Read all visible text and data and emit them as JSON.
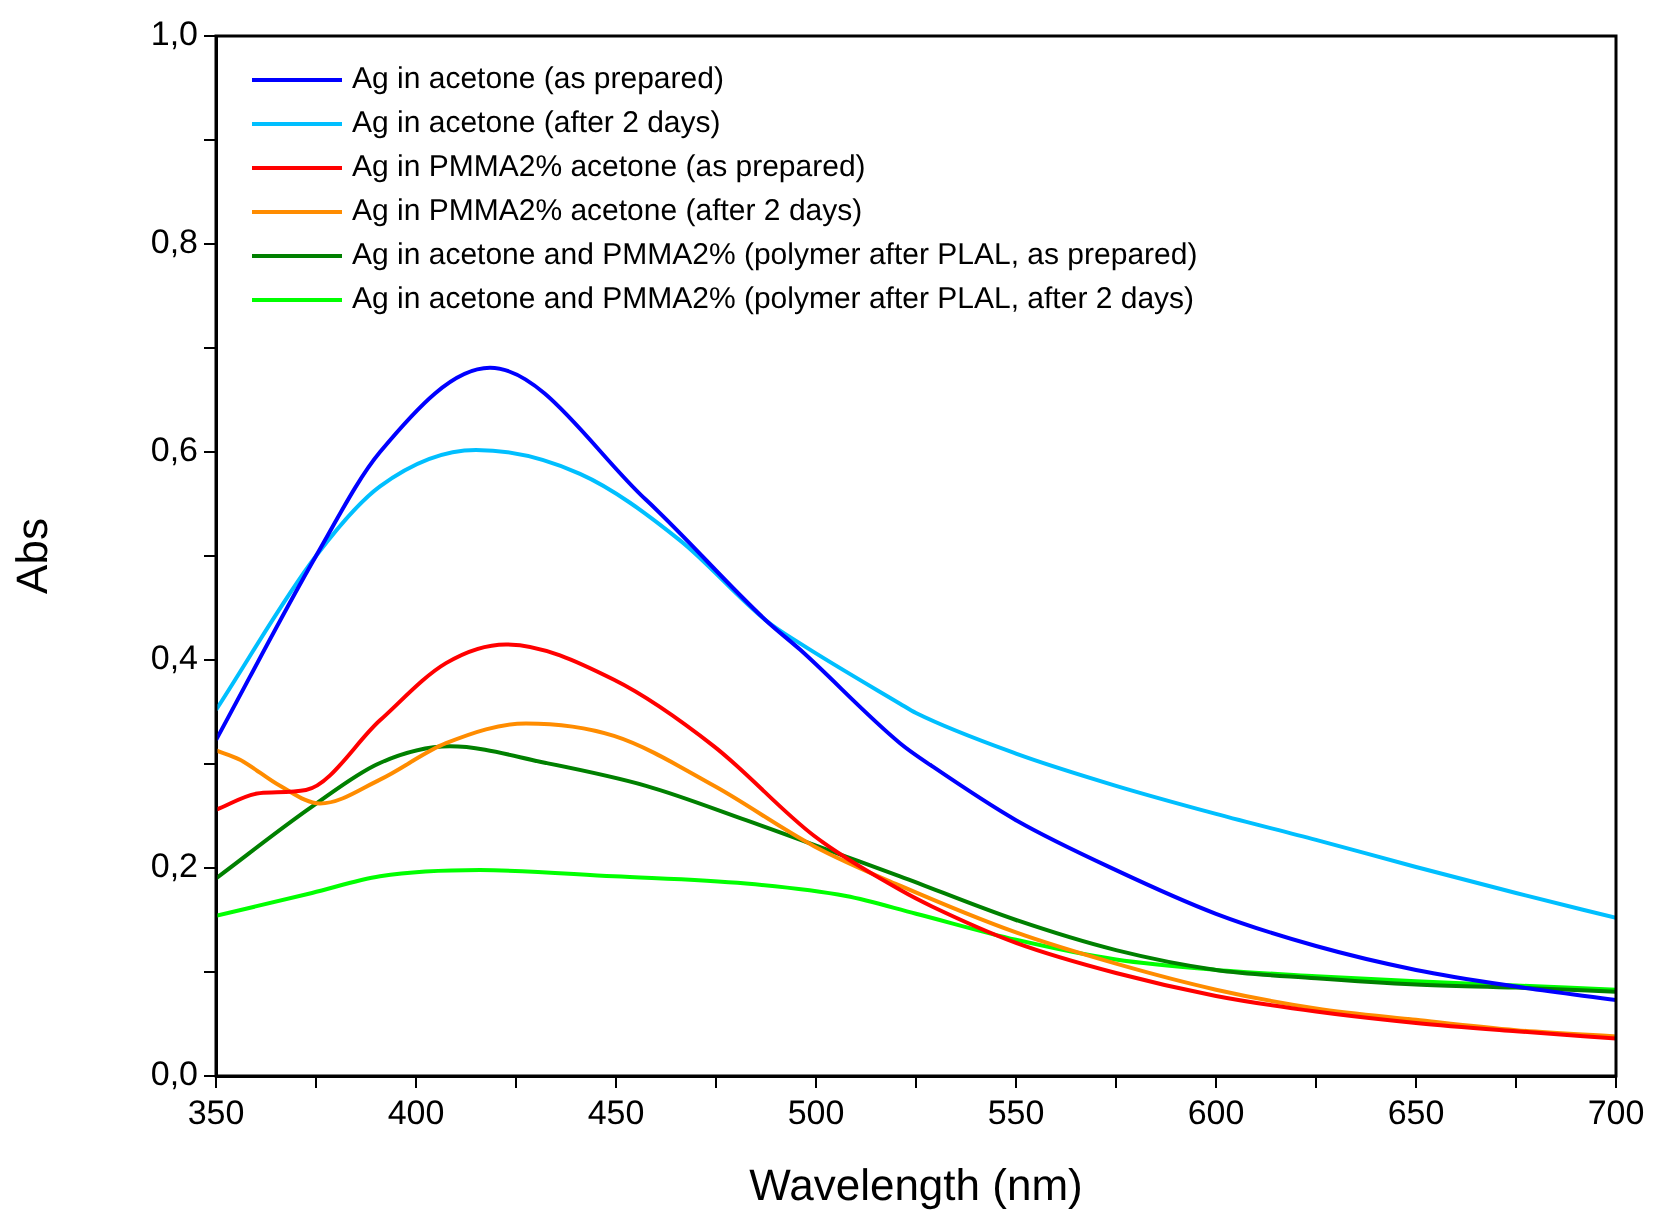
{
  "chart_data": {
    "type": "line",
    "xlabel": "Wavelength (nm)",
    "ylabel": "Abs",
    "xlim": [
      350,
      700
    ],
    "ylim": [
      0,
      1
    ],
    "xticks": [
      350,
      {
        "value": 375,
        "label": null
      },
      400,
      {
        "value": 425,
        "label": null
      },
      450,
      {
        "value": 475,
        "label": null
      },
      500,
      {
        "value": 525,
        "label": null
      },
      550,
      {
        "value": 575,
        "label": null
      },
      600,
      {
        "value": 625,
        "label": null
      },
      650,
      {
        "value": 675,
        "label": null
      },
      700
    ],
    "yticks": [
      {
        "value": 0,
        "label": "0,0"
      },
      {
        "value": 0.1,
        "label": null
      },
      {
        "value": 0.2,
        "label": "0,2"
      },
      {
        "value": 0.3,
        "label": null
      },
      {
        "value": 0.4,
        "label": "0,4"
      },
      {
        "value": 0.5,
        "label": null
      },
      {
        "value": 0.6,
        "label": "0,6"
      },
      {
        "value": 0.7,
        "label": null
      },
      {
        "value": 0.8,
        "label": "0,8"
      },
      {
        "value": 0.9,
        "label": null
      },
      {
        "value": 1,
        "label": "1,0"
      }
    ],
    "grid": false,
    "legend": "top left",
    "marker": "none",
    "line_style": "solid",
    "series": [
      {
        "name": "Ag in acetone (as prepared)",
        "color": "#0000ff",
        "x": [
          350,
          375,
          391,
          418.5,
          457.5,
          487.5,
          496,
          521,
          529,
          550,
          575,
          600,
          625,
          650,
          675,
          700
        ],
        "values": [
          0.323,
          0.5,
          0.6,
          0.681,
          0.554,
          0.438,
          0.41,
          0.32,
          0.298,
          0.246,
          0.198,
          0.156,
          0.125,
          0.102,
          0.086,
          0.073
        ]
      },
      {
        "name": "Ag in acetone (after 2 days)",
        "color": "#00bfff",
        "x": [
          350,
          375,
          391,
          415,
          441,
          466,
          487.5,
          496,
          521,
          525,
          550,
          575,
          600,
          625,
          650,
          675,
          700
        ],
        "values": [
          0.352,
          0.5,
          0.567,
          0.602,
          0.579,
          0.515,
          0.438,
          0.416,
          0.358,
          0.349,
          0.31,
          0.279,
          0.252,
          0.227,
          0.201,
          0.176,
          0.152
        ]
      },
      {
        "name": "Ag in PMMA2% acetone (as prepared)",
        "color": "#ff0000",
        "x": [
          350,
          361,
          372.5,
          391,
          407.5,
          422.5,
          449.5,
          474.5,
          499.5,
          521,
          529,
          550,
          575,
          600,
          625,
          650,
          675,
          700
        ],
        "values": [
          0.256,
          0.272,
          0.275,
          0.342,
          0.397,
          0.415,
          0.381,
          0.317,
          0.231,
          0.179,
          0.163,
          0.128,
          0.099,
          0.077,
          0.062,
          0.051,
          0.043,
          0.036
        ]
      },
      {
        "name": "Ag in PMMA2% acetone (after 2 days)",
        "color": "#ff8c00",
        "x": [
          350,
          356,
          366,
          376,
          391,
          407.5,
          427.5,
          449.5,
          474.5,
          499.5,
          521,
          550,
          575,
          600,
          625,
          650,
          675,
          700
        ],
        "values": [
          0.313,
          0.304,
          0.279,
          0.262,
          0.285,
          0.32,
          0.339,
          0.327,
          0.279,
          0.221,
          0.183,
          0.138,
          0.108,
          0.083,
          0.065,
          0.054,
          0.044,
          0.038
        ]
      },
      {
        "name": "Ag in acetone and PMMA2% (polymer after PLAL, as prepared)",
        "color": "#008000",
        "x": [
          350,
          374,
          391,
          408.5,
          432.5,
          457.5,
          482.5,
          507.5,
          521,
          550,
          575,
          600,
          625,
          650,
          675,
          700
        ],
        "values": [
          0.19,
          0.259,
          0.301,
          0.317,
          0.301,
          0.279,
          0.246,
          0.211,
          0.192,
          0.15,
          0.121,
          0.102,
          0.094,
          0.088,
          0.085,
          0.081
        ]
      },
      {
        "name": "Ag in acetone and PMMA2% (polymer after PLAL, after 2 days)",
        "color": "#00ff00",
        "x": [
          350,
          374,
          391,
          416,
          449.5,
          482.5,
          507.5,
          525,
          550,
          575,
          600,
          625,
          650,
          675,
          700
        ],
        "values": [
          0.154,
          0.176,
          0.192,
          0.198,
          0.192,
          0.185,
          0.173,
          0.156,
          0.131,
          0.112,
          0.102,
          0.096,
          0.091,
          0.087,
          0.083
        ]
      }
    ]
  }
}
